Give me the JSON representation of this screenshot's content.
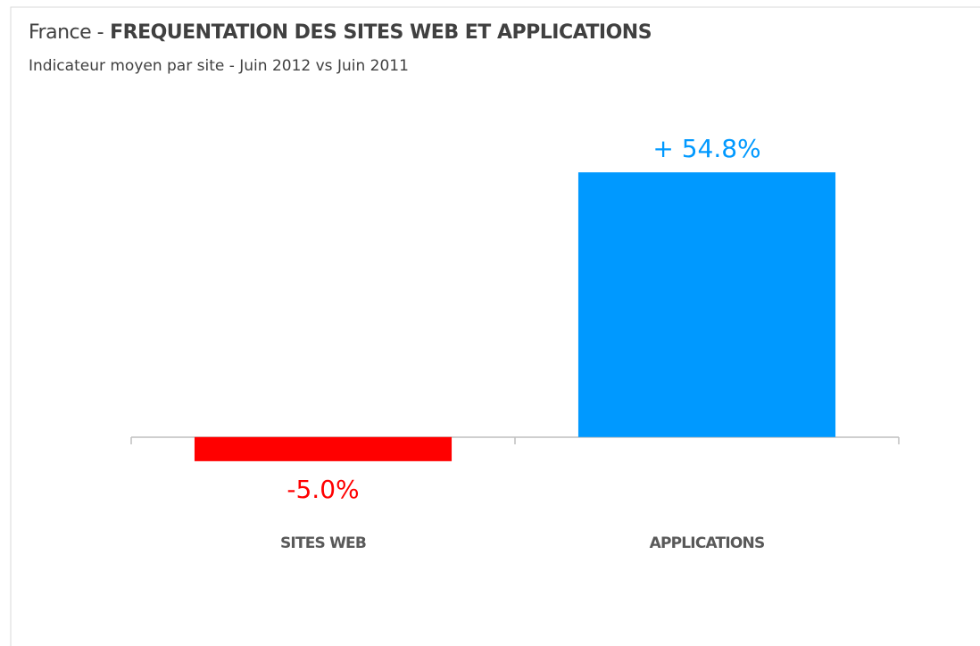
{
  "chart_data": {
    "type": "bar",
    "title": [
      "France -",
      "FREQUENTATION DES SITES WEB ET APPLICATIONS"
    ],
    "subtitle": "Indicateur moyen par site - Juin 2012 vs Juin 2011",
    "categories": [
      "SITES WEB",
      "APPLICATIONS"
    ],
    "values": [
      -5.0,
      54.8
    ],
    "value_labels": [
      "-5.0%",
      "+ 54.8%"
    ],
    "colors": [
      "#ff0000",
      "#0099ff"
    ],
    "ylim": [
      -15,
      60
    ]
  }
}
